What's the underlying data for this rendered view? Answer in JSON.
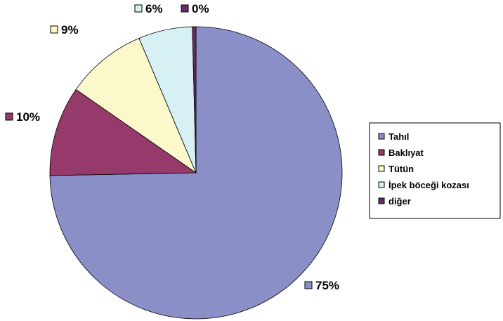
{
  "chart_data": {
    "type": "pie",
    "slices": [
      {
        "name": "Tahıl",
        "value": 75,
        "label": "75%",
        "color": "#8b8fc8"
      },
      {
        "name": "Baklıyat",
        "value": 10,
        "label": "10%",
        "color": "#953a6a"
      },
      {
        "name": "Tütün",
        "value": 9,
        "label": "9%",
        "color": "#fbf8cc"
      },
      {
        "name": "İpek böceği kozası",
        "value": 6,
        "label": "6%",
        "color": "#d6f0f3"
      },
      {
        "name": "diğer",
        "value": 0.4,
        "label": "0%",
        "color": "#6b2a66"
      }
    ],
    "legend": {
      "placement": "right",
      "entries": [
        "Tahıl",
        "Baklıyat",
        "Tütün",
        "İpek böceği kozası",
        "diğer"
      ]
    },
    "start_angle": "12 o'clock",
    "direction": "clockwise"
  }
}
